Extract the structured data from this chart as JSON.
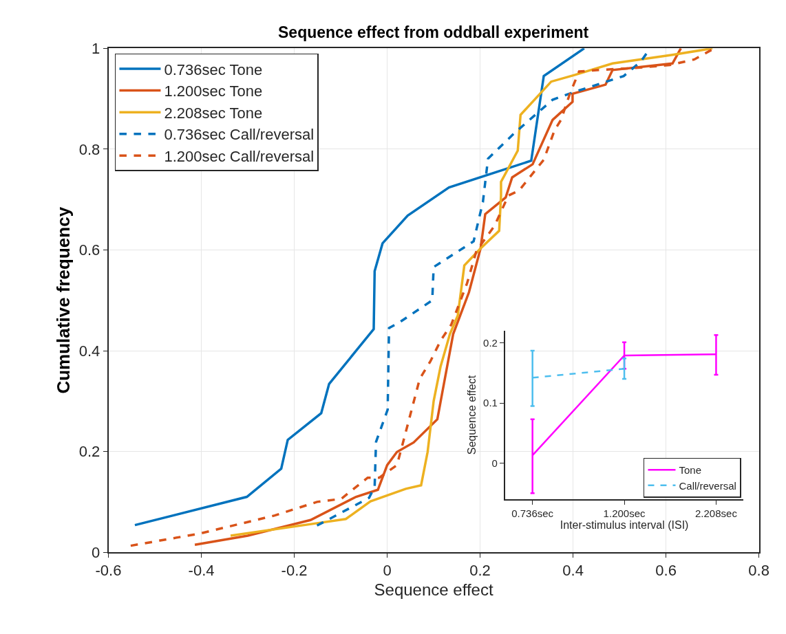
{
  "chart_data": [
    {
      "type": "line",
      "title": "Sequence effect from oddball experiment",
      "xlabel": "Sequence effect",
      "ylabel": "Cumulative frequency",
      "xlim": [
        -0.6,
        0.8
      ],
      "ylim": [
        0,
        1
      ],
      "xticks": [
        -0.6,
        -0.4,
        -0.2,
        0,
        0.2,
        0.4,
        0.6,
        0.8
      ],
      "yticks": [
        0,
        0.2,
        0.4,
        0.6,
        0.8,
        1
      ],
      "grid": true,
      "legend": "top left",
      "series": [
        {
          "name": "0.736sec Tone",
          "color": "#0072bd",
          "line_style": "solid",
          "x": [
            -0.543,
            -0.302,
            -0.228,
            -0.214,
            -0.142,
            -0.125,
            -0.029,
            -0.027,
            -0.01,
            0.044,
            0.133,
            0.31,
            0.337,
            0.424
          ],
          "values": [
            0.054,
            0.11,
            0.166,
            0.223,
            0.276,
            0.334,
            0.443,
            0.558,
            0.613,
            0.668,
            0.724,
            0.777,
            0.945,
            1.0
          ]
        },
        {
          "name": "1.200sec Tone",
          "color": "#d95319",
          "line_style": "solid",
          "x": [
            -0.414,
            -0.3,
            -0.165,
            -0.067,
            -0.02,
            0.0,
            0.021,
            0.057,
            0.108,
            0.118,
            0.142,
            0.176,
            0.201,
            0.211,
            0.255,
            0.269,
            0.313,
            0.356,
            0.399,
            0.399,
            0.47,
            0.485,
            0.614,
            0.632
          ],
          "values": [
            0.015,
            0.033,
            0.064,
            0.11,
            0.124,
            0.173,
            0.199,
            0.218,
            0.264,
            0.314,
            0.433,
            0.516,
            0.603,
            0.671,
            0.704,
            0.744,
            0.77,
            0.858,
            0.894,
            0.91,
            0.928,
            0.957,
            0.97,
            1.0
          ]
        },
        {
          "name": "2.208sec Tone",
          "color": "#edb120",
          "line_style": "solid",
          "x": [
            -0.337,
            -0.156,
            -0.089,
            -0.036,
            0.04,
            0.073,
            0.087,
            0.1,
            0.115,
            0.135,
            0.152,
            0.166,
            0.201,
            0.241,
            0.245,
            0.245,
            0.281,
            0.287,
            0.353,
            0.403,
            0.485,
            0.614,
            0.7
          ],
          "values": [
            0.033,
            0.057,
            0.066,
            0.101,
            0.126,
            0.133,
            0.199,
            0.3,
            0.369,
            0.433,
            0.47,
            0.569,
            0.603,
            0.638,
            0.708,
            0.735,
            0.797,
            0.868,
            0.934,
            0.947,
            0.97,
            0.987,
            1.0
          ]
        },
        {
          "name": "0.736sec Call/reversal",
          "color": "#0072bd",
          "line_style": "dashed",
          "x": [
            -0.151,
            -0.039,
            -0.027,
            -0.024,
            0.001,
            0.004,
            0.026,
            0.097,
            0.1,
            0.186,
            0.206,
            0.217,
            0.274,
            0.356,
            0.398,
            0.509,
            0.546,
            0.566
          ],
          "values": [
            0.053,
            0.108,
            0.13,
            0.219,
            0.283,
            0.445,
            0.456,
            0.5,
            0.566,
            0.617,
            0.695,
            0.781,
            0.832,
            0.898,
            0.912,
            0.945,
            0.974,
            1.0
          ]
        },
        {
          "name": "1.200sec Call/reversal",
          "color": "#d95319",
          "line_style": "dashed",
          "x": [
            -0.552,
            -0.404,
            -0.242,
            -0.151,
            -0.099,
            -0.042,
            -0.017,
            0.021,
            0.033,
            0.07,
            0.093,
            0.115,
            0.138,
            0.172,
            0.192,
            0.231,
            0.261,
            0.284,
            0.337,
            0.36,
            0.374,
            0.394,
            0.413,
            0.456,
            0.532,
            0.609,
            0.661,
            0.704
          ],
          "values": [
            0.013,
            0.037,
            0.073,
            0.1,
            0.106,
            0.148,
            0.148,
            0.173,
            0.214,
            0.344,
            0.379,
            0.42,
            0.452,
            0.534,
            0.598,
            0.648,
            0.708,
            0.718,
            0.779,
            0.837,
            0.858,
            0.912,
            0.954,
            0.957,
            0.961,
            0.967,
            0.978,
            1.0
          ]
        }
      ]
    },
    {
      "type": "line",
      "xlabel": "Inter-stimulus interval (ISI)",
      "ylabel": "Sequence effect",
      "categories": [
        "0.736sec",
        "1.200sec",
        "2.208sec"
      ],
      "ylim": [
        -0.06,
        0.22
      ],
      "yticks": [
        0,
        0.1,
        0.2
      ],
      "legend": "bottom right",
      "series": [
        {
          "name": "Tone",
          "color": "#ff00ff",
          "line_style": "solid",
          "values": [
            0.013,
            0.179,
            0.181
          ],
          "errors": [
            [
              -0.05,
              0.073
            ],
            [
              0.157,
              0.201
            ],
            [
              0.147,
              0.213
            ]
          ]
        },
        {
          "name": "Call/reversal",
          "color": "#4dbeee",
          "line_style": "dashed",
          "values": [
            0.142,
            0.157,
            null
          ],
          "errors": [
            [
              0.095,
              0.187
            ],
            [
              0.14,
              0.174
            ],
            null
          ]
        }
      ]
    }
  ]
}
